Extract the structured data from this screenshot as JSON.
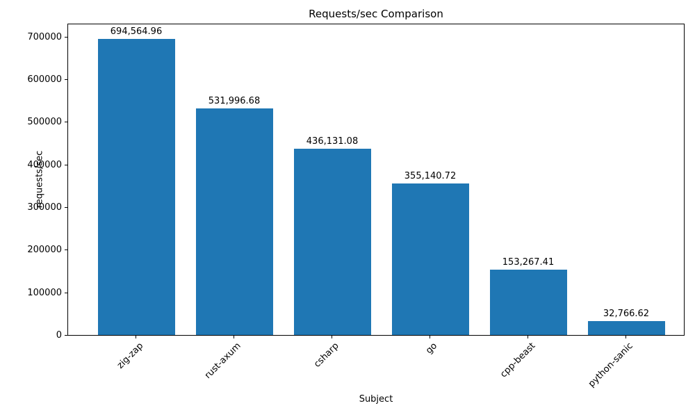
{
  "chart_data": {
    "type": "bar",
    "title": "Requests/sec Comparison",
    "xlabel": "Subject",
    "ylabel": "requests/sec",
    "categories": [
      "zig-zap",
      "rust-axum",
      "csharp",
      "go",
      "cpp-beast",
      "python-sanic"
    ],
    "values": [
      694564.96,
      531996.68,
      436131.08,
      355140.72,
      153267.41,
      32766.62
    ],
    "value_labels": [
      "694,564.96",
      "531,996.68",
      "436,131.08",
      "355,140.72",
      "153,267.41",
      "32,766.62"
    ],
    "ytick_values": [
      0,
      100000,
      200000,
      300000,
      400000,
      500000,
      600000,
      700000
    ],
    "ytick_labels": [
      "0",
      "100000",
      "200000",
      "300000",
      "400000",
      "500000",
      "600000",
      "700000"
    ],
    "ylim": [
      0,
      732000
    ],
    "xtick_label_rotation": 45,
    "grid": false,
    "legend": null,
    "bar_color": "#1f77b4",
    "text_color": "#000000",
    "background_color": "#ffffff"
  }
}
